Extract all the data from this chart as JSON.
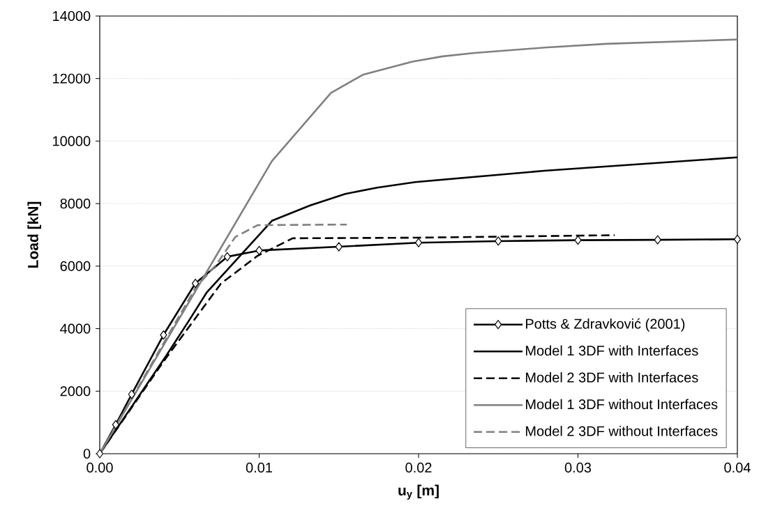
{
  "chart_data": {
    "type": "line",
    "xlabel": "u$_{y}$ [m]",
    "ylabel": "Load [kN]",
    "xlim": [
      0,
      0.04
    ],
    "ylim": [
      0,
      14000
    ],
    "xticks": [
      {
        "value": 0,
        "label": "0.00"
      },
      {
        "value": 0.01,
        "label": "0.01"
      },
      {
        "value": 0.02,
        "label": "0.02"
      },
      {
        "value": 0.03,
        "label": "0.03"
      },
      {
        "value": 0.04,
        "label": "0.04"
      }
    ],
    "yticks": [
      0,
      2000,
      4000,
      6000,
      8000,
      10000,
      12000,
      14000
    ],
    "grid": "y",
    "legend": "bottom right",
    "series": [
      {
        "name": "Potts & Zdravković (2001)",
        "color": "#000000",
        "marker": "diamond",
        "line_style": "solid",
        "x": [
          0,
          0.001,
          0.002,
          0.004,
          0.006,
          0.008,
          0.01,
          0.015,
          0.02,
          0.025,
          0.03,
          0.035,
          0.04
        ],
        "values": [
          0,
          930,
          1900,
          3800,
          5450,
          6300,
          6500,
          6620,
          6750,
          6800,
          6830,
          6840,
          6860
        ]
      },
      {
        "name": "Model 1 3DF with Interfaces",
        "color": "#000000",
        "line_style": "solid",
        "x": [
          0,
          0.0041,
          0.0056,
          0.0067,
          0.0108,
          0.0132,
          0.0154,
          0.0174,
          0.0198,
          0.0279,
          0.04
        ],
        "values": [
          0,
          3080,
          4260,
          5150,
          7450,
          7940,
          8310,
          8510,
          8690,
          9050,
          9480
        ]
      },
      {
        "name": "Model 2 3DF with Interfaces",
        "color": "#000000",
        "line_style": "dashed",
        "x": [
          0,
          0.004,
          0.0076,
          0.0099,
          0.0121,
          0.02,
          0.0323
        ],
        "values": [
          0,
          2950,
          5440,
          6330,
          6890,
          6910,
          6990
        ]
      },
      {
        "name": "Model 1 3DF without Interfaces",
        "color": "#808080",
        "line_style": "solid",
        "x": [
          0,
          0.0108,
          0.0145,
          0.0165,
          0.0196,
          0.0215,
          0.0235,
          0.0279,
          0.0318,
          0.04
        ],
        "values": [
          0,
          9360,
          11540,
          12120,
          12540,
          12710,
          12820,
          12990,
          13110,
          13250
        ]
      },
      {
        "name": "Model 2 3DF without Interfaces",
        "color": "#808080",
        "line_style": "dashed",
        "x": [
          0,
          0.006,
          0.0073,
          0.0085,
          0.0099,
          0.0155
        ],
        "values": [
          0,
          5300,
          6040,
          6930,
          7310,
          7330
        ]
      }
    ]
  }
}
